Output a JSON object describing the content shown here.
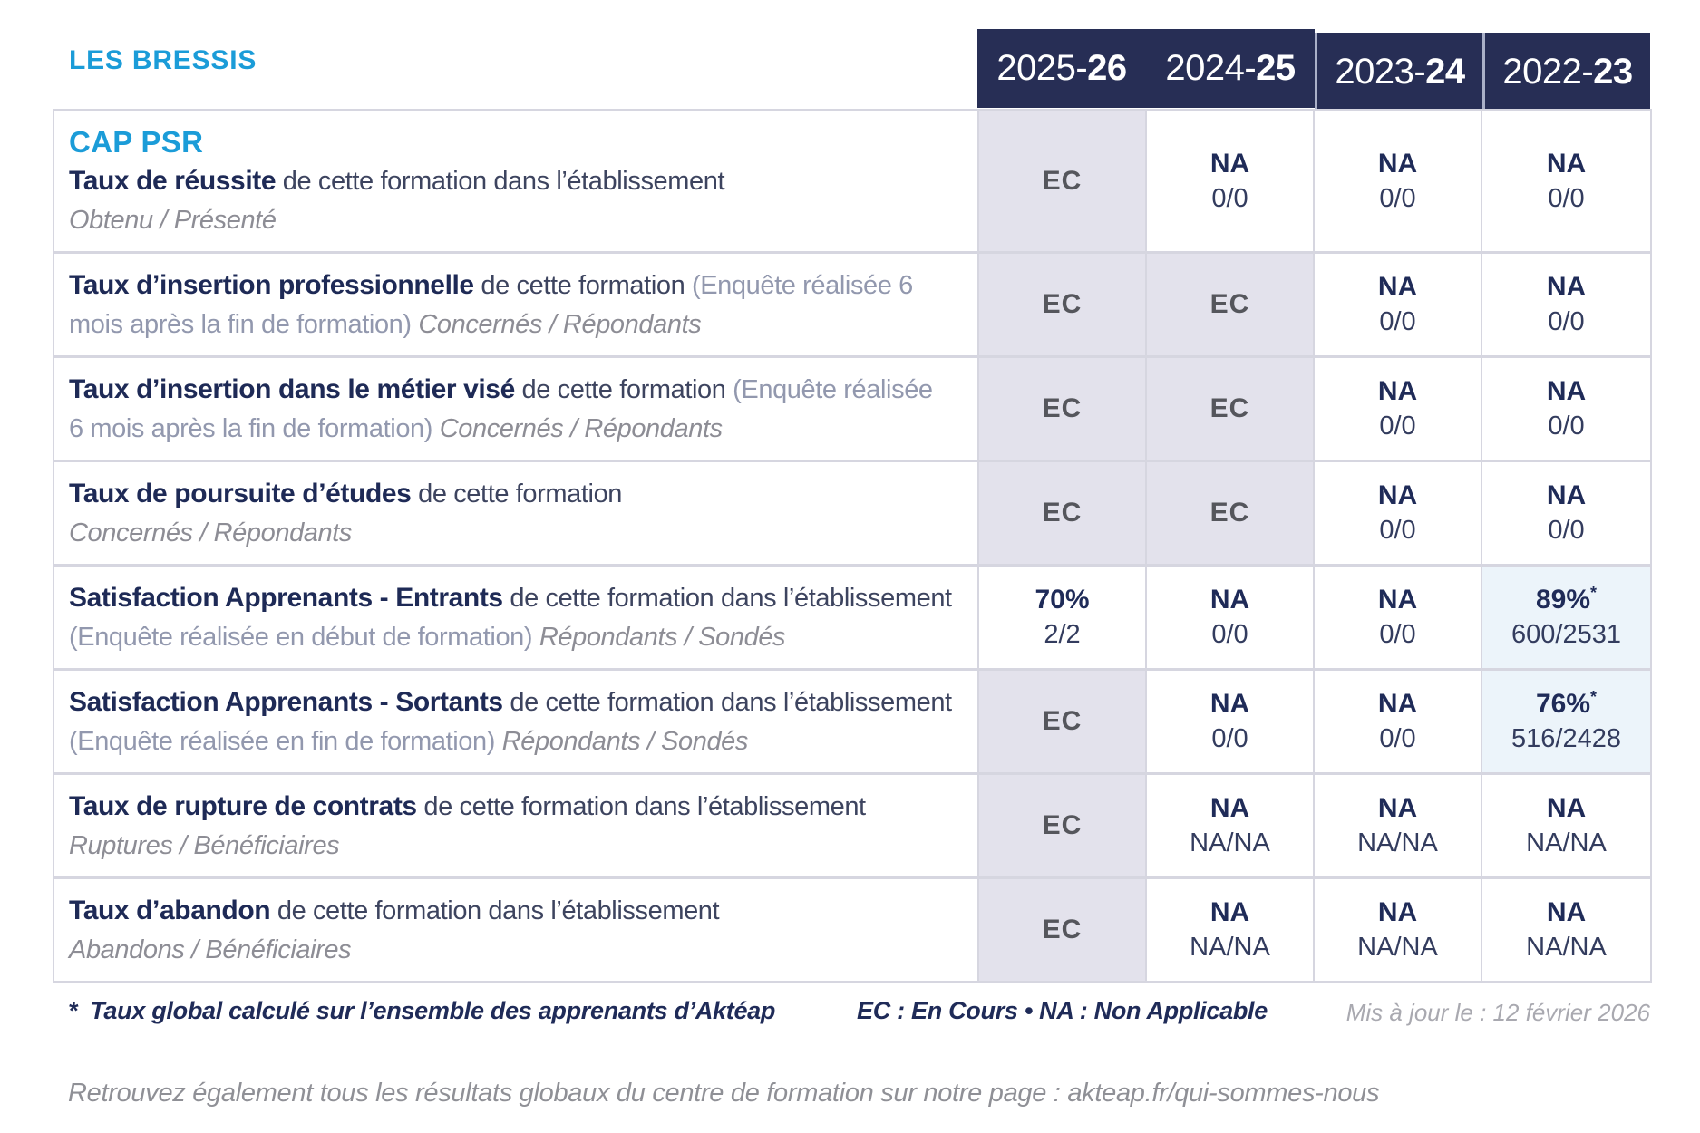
{
  "brand": {
    "name": "LES BRESSIS"
  },
  "program": "CAP PSR",
  "header": {
    "years": [
      {
        "prefix": "2025-",
        "suffix": "26"
      },
      {
        "prefix": "2024-",
        "suffix": "25"
      },
      {
        "prefix": "2023-",
        "suffix": "24"
      },
      {
        "prefix": "2022-",
        "suffix": "23"
      }
    ]
  },
  "rows": [
    {
      "title": "Taux de réussite",
      "rest": " de cette formation dans l’établissement",
      "paren": "",
      "sub_inline": "",
      "sub_block": "Obtenu / Présenté",
      "cells": [
        {
          "top": "EC",
          "bottom": "",
          "star": ""
        },
        {
          "top": "NA",
          "bottom": "0/0",
          "star": ""
        },
        {
          "top": "NA",
          "bottom": "0/0",
          "star": ""
        },
        {
          "top": "NA",
          "bottom": "0/0",
          "star": ""
        }
      ]
    },
    {
      "title": "Taux d’insertion professionnelle",
      "rest": " de cette formation ",
      "paren": "(Enquête réalisée 6 mois après la fin de formation)",
      "sub_inline": " Concernés / Répondants",
      "sub_block": "",
      "cells": [
        {
          "top": "EC",
          "bottom": "",
          "star": ""
        },
        {
          "top": "EC",
          "bottom": "",
          "star": ""
        },
        {
          "top": "NA",
          "bottom": "0/0",
          "star": ""
        },
        {
          "top": "NA",
          "bottom": "0/0",
          "star": ""
        }
      ]
    },
    {
      "title": "Taux d’insertion dans le métier visé",
      "rest": " de cette formation ",
      "paren": "(Enquête réalisée 6 mois après la fin de formation)",
      "sub_inline": " Concernés / Répondants",
      "sub_block": "",
      "cells": [
        {
          "top": "EC",
          "bottom": "",
          "star": ""
        },
        {
          "top": "EC",
          "bottom": "",
          "star": ""
        },
        {
          "top": "NA",
          "bottom": "0/0",
          "star": ""
        },
        {
          "top": "NA",
          "bottom": "0/0",
          "star": ""
        }
      ]
    },
    {
      "title": "Taux de poursuite d’études",
      "rest": " de cette formation",
      "paren": "",
      "sub_inline": "",
      "sub_block": "Concernés / Répondants",
      "cells": [
        {
          "top": "EC",
          "bottom": "",
          "star": ""
        },
        {
          "top": "EC",
          "bottom": "",
          "star": ""
        },
        {
          "top": "NA",
          "bottom": "0/0",
          "star": ""
        },
        {
          "top": "NA",
          "bottom": "0/0",
          "star": ""
        }
      ]
    },
    {
      "title": "Satisfaction Apprenants - Entrants",
      "rest": " de cette formation dans l’établissement ",
      "paren": "(Enquête réalisée en début de formation)",
      "sub_inline": " Répondants / Sondés",
      "sub_block": "",
      "cells": [
        {
          "top": "70%",
          "bottom": "2/2",
          "star": ""
        },
        {
          "top": "NA",
          "bottom": "0/0",
          "star": ""
        },
        {
          "top": "NA",
          "bottom": "0/0",
          "star": ""
        },
        {
          "top": "89%",
          "bottom": "600/2531",
          "star": "*"
        }
      ]
    },
    {
      "title": "Satisfaction Apprenants - Sortants",
      "rest": " de cette formation dans l’établissement ",
      "paren": "(Enquête réalisée en fin de formation)",
      "sub_inline": " Répondants / Sondés",
      "sub_block": "",
      "cells": [
        {
          "top": "EC",
          "bottom": "",
          "star": ""
        },
        {
          "top": "NA",
          "bottom": "0/0",
          "star": ""
        },
        {
          "top": "NA",
          "bottom": "0/0",
          "star": ""
        },
        {
          "top": "76%",
          "bottom": "516/2428",
          "star": "*"
        }
      ]
    },
    {
      "title": "Taux de rupture de contrats",
      "rest": " de cette formation dans l’établissement",
      "paren": "",
      "sub_inline": "",
      "sub_block": "Ruptures / Bénéficiaires",
      "cells": [
        {
          "top": "EC",
          "bottom": "",
          "star": ""
        },
        {
          "top": "NA",
          "bottom": "NA/NA",
          "star": ""
        },
        {
          "top": "NA",
          "bottom": "NA/NA",
          "star": ""
        },
        {
          "top": "NA",
          "bottom": "NA/NA",
          "star": ""
        }
      ]
    },
    {
      "title": "Taux d’abandon",
      "rest": " de cette formation dans l’établissement",
      "paren": "",
      "sub_inline": "",
      "sub_block": "Abandons / Bénéficiaires",
      "cells": [
        {
          "top": "EC",
          "bottom": "",
          "star": ""
        },
        {
          "top": "NA",
          "bottom": "NA/NA",
          "star": ""
        },
        {
          "top": "NA",
          "bottom": "NA/NA",
          "star": ""
        },
        {
          "top": "NA",
          "bottom": "NA/NA",
          "star": ""
        }
      ]
    }
  ],
  "legend": {
    "star": "*",
    "star_note": "Taux global calculé sur l’ensemble des apprenants d’Aktéap",
    "ec_na": "EC : En Cours  •  NA : Non Applicable",
    "updated": "Mis à jour le : 12 février 2026"
  },
  "footer_link_line": "Retrouvez également tous les résultats globaux du centre de formation sur notre page : akteap.fr/qui-sommes-nous",
  "colors": {
    "accent_blue": "#1b9cd8",
    "navy_text": "#1f2b58",
    "header_bg": "#272e55",
    "ec_cell_bg": "#e3e2ec",
    "highlight_cell_bg": "#ecf4fa",
    "grid_line": "#d6d6e0"
  }
}
